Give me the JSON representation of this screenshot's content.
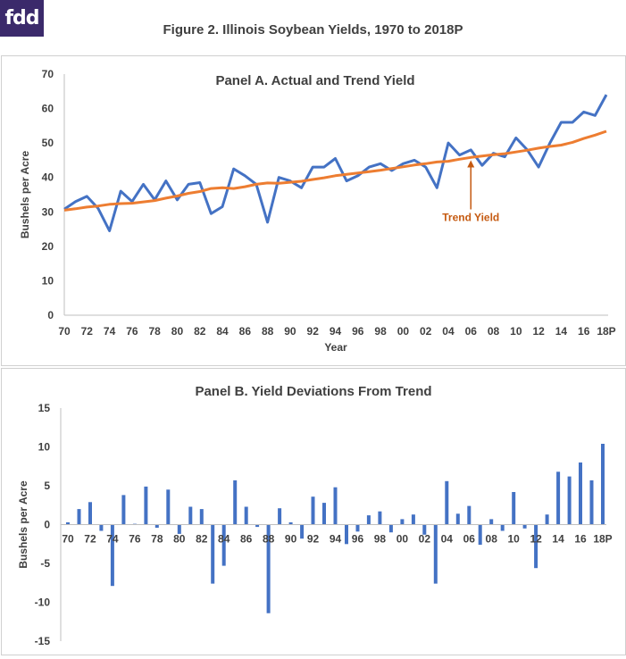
{
  "logo_text": "fdd",
  "figure_title": "Figure 2.  Illinois  Soybean Yields, 1970 to 2018P",
  "colors": {
    "actual": "#4472c4",
    "trend": "#ed7d31",
    "annotation": "#c55a11",
    "bars": "#4472c4"
  },
  "chart_data": [
    {
      "type": "line",
      "title": "Panel A. Actual and Trend Yield",
      "xlabel": "Year",
      "ylabel": "Bushels per Acre",
      "ylim": [
        0,
        70
      ],
      "yticks": [
        0,
        10,
        20,
        30,
        40,
        50,
        60,
        70
      ],
      "grid": false,
      "x": [
        1970,
        1971,
        1972,
        1973,
        1974,
        1975,
        1976,
        1977,
        1978,
        1979,
        1980,
        1981,
        1982,
        1983,
        1984,
        1985,
        1986,
        1987,
        1988,
        1989,
        1990,
        1991,
        1992,
        1993,
        1994,
        1995,
        1996,
        1997,
        1998,
        1999,
        2000,
        2001,
        2002,
        2003,
        2004,
        2005,
        2006,
        2007,
        2008,
        2009,
        2010,
        2011,
        2012,
        2013,
        2014,
        2015,
        2016,
        2017,
        2018
      ],
      "xtick_labels": [
        "70",
        "72",
        "74",
        "76",
        "78",
        "80",
        "82",
        "84",
        "86",
        "88",
        "90",
        "92",
        "94",
        "96",
        "98",
        "00",
        "02",
        "04",
        "06",
        "08",
        "10",
        "12",
        "14",
        "16",
        "18P"
      ],
      "series": [
        {
          "values": [
            30.8,
            33.0,
            34.5,
            31.0,
            24.5,
            36.0,
            33.0,
            38.0,
            33.5,
            39.0,
            33.5,
            38.0,
            38.5,
            29.5,
            31.5,
            42.5,
            40.5,
            38.0,
            27.0,
            40.0,
            39.0,
            37.0,
            43.0,
            43.0,
            45.5,
            39.0,
            40.5,
            43.0,
            44.0,
            42.0,
            44.0,
            45.0,
            43.0,
            37.0,
            50.0,
            46.5,
            48.0,
            43.5,
            47.0,
            46.0,
            51.5,
            48.0,
            43.0,
            50.0,
            56.0,
            56.0,
            59.0,
            58.0,
            64.0
          ]
        },
        {
          "values": [
            30.5,
            30.9,
            31.4,
            31.7,
            32.2,
            32.4,
            32.5,
            32.9,
            33.3,
            34.0,
            34.6,
            35.4,
            35.9,
            36.8,
            37.0,
            36.8,
            37.3,
            38.0,
            38.4,
            38.3,
            38.6,
            38.9,
            39.4,
            39.9,
            40.5,
            40.9,
            41.3,
            41.7,
            42.1,
            42.6,
            43.1,
            43.6,
            44.0,
            44.5,
            44.7,
            45.3,
            45.8,
            46.2,
            46.6,
            46.9,
            47.4,
            47.9,
            48.5,
            49.0,
            49.4,
            50.2,
            51.3,
            52.3,
            53.4
          ]
        }
      ],
      "annotations": [
        {
          "text": "Trend Yield",
          "x": 2006,
          "y": 45.5,
          "label_y": 31.5
        }
      ]
    },
    {
      "type": "bar",
      "title": "Panel B.  Yield Deviations From Trend",
      "xlabel": "",
      "ylabel": "Bushels per Acre",
      "ylim": [
        -15,
        15
      ],
      "yticks": [
        -15,
        -10,
        -5,
        0,
        5,
        10,
        15
      ],
      "grid": false,
      "x": [
        1970,
        1971,
        1972,
        1973,
        1974,
        1975,
        1976,
        1977,
        1978,
        1979,
        1980,
        1981,
        1982,
        1983,
        1984,
        1985,
        1986,
        1987,
        1988,
        1989,
        1990,
        1991,
        1992,
        1993,
        1994,
        1995,
        1996,
        1997,
        1998,
        1999,
        2000,
        2001,
        2002,
        2003,
        2004,
        2005,
        2006,
        2007,
        2008,
        2009,
        2010,
        2011,
        2012,
        2013,
        2014,
        2015,
        2016,
        2017,
        2018
      ],
      "xtick_labels": [
        "70",
        "72",
        "74",
        "76",
        "78",
        "80",
        "82",
        "84",
        "86",
        "88",
        "90",
        "92",
        "94",
        "96",
        "98",
        "00",
        "02",
        "04",
        "06",
        "08",
        "10",
        "12",
        "14",
        "16",
        "18P"
      ],
      "values": [
        0.3,
        2.0,
        2.9,
        -0.8,
        -7.9,
        3.8,
        0.1,
        4.9,
        -0.4,
        4.5,
        -1.2,
        2.3,
        2.0,
        -7.6,
        -5.3,
        5.7,
        2.3,
        -0.3,
        -11.4,
        2.1,
        0.3,
        -1.8,
        3.6,
        2.8,
        4.8,
        -2.5,
        -0.9,
        1.2,
        1.7,
        -1.0,
        0.7,
        1.3,
        -1.3,
        -7.6,
        5.6,
        1.4,
        2.4,
        -2.6,
        0.7,
        -0.8,
        4.2,
        -0.5,
        -5.6,
        1.3,
        6.8,
        6.2,
        8.0,
        5.7,
        10.4
      ]
    }
  ]
}
